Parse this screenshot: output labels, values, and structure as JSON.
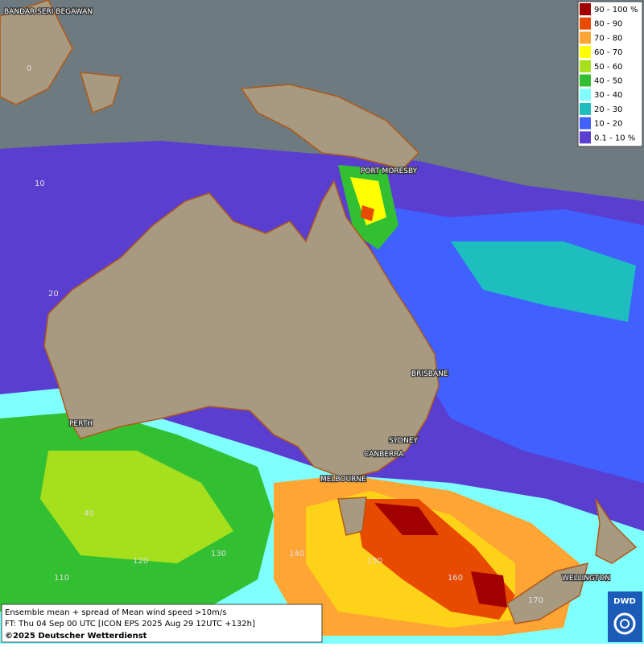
{
  "map": {
    "cities": [
      "BANDAR SERI BEGAWAN",
      "PORT MORESBY",
      "BRISBANE",
      "PERTH",
      "SYDNEY",
      "CANBERRA",
      "MELBOURNE",
      "WELLINGTON"
    ],
    "grid_labels": [
      "0",
      "10",
      "20",
      "40",
      "110",
      "120",
      "130",
      "140",
      "150",
      "160",
      "170"
    ],
    "legend": [
      {
        "label": "90 - 100 %",
        "color": "#a00000"
      },
      {
        "label": "80 - 90",
        "color": "#e84a00"
      },
      {
        "label": "70 - 80",
        "color": "#ffa534"
      },
      {
        "label": "60 - 70",
        "color": "#ffff00"
      },
      {
        "label": "50 - 60",
        "color": "#a6e01c"
      },
      {
        "label": "40 - 50",
        "color": "#32c032"
      },
      {
        "label": "30 - 40",
        "color": "#80ffff"
      },
      {
        "label": "20 - 30",
        "color": "#1ebebe"
      },
      {
        "label": "10 - 20",
        "color": "#4060ff"
      },
      {
        "label": "0.1 - 10 %",
        "color": "#5a3ed0"
      }
    ],
    "caption": [
      "Ensemble mean + spread of Mean wind speed >10m/s",
      "FT: Thu 04 Sep 00 UTC [ICON EPS 2025 Aug 29 12UTC +132h]",
      "©2025 Deutscher Wetterdienst"
    ],
    "logo": "DWD"
  }
}
